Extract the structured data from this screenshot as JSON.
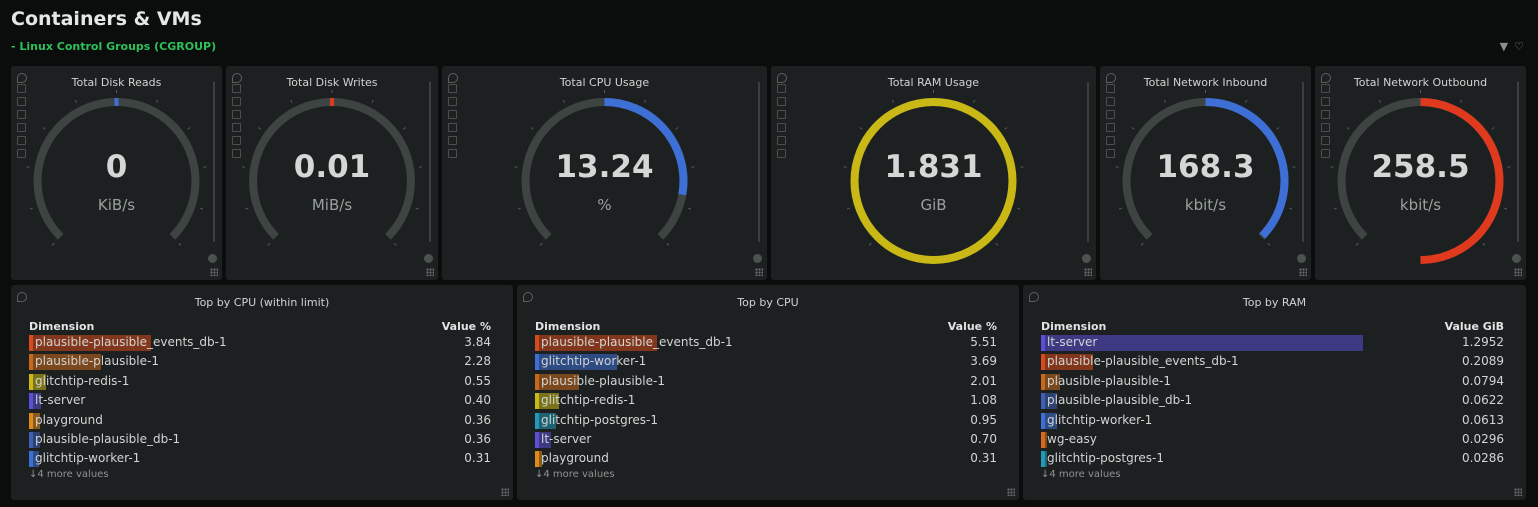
{
  "header": {
    "title": "Containers & VMs",
    "subtitle": "- Linux Control Groups (CGROUP)"
  },
  "gauges": [
    {
      "title": "Total Disk Reads",
      "value": "0",
      "unit": "KiB/s",
      "fraction": 0.0,
      "color": "#3d6fd6"
    },
    {
      "title": "Total Disk Writes",
      "value": "0.01",
      "unit": "MiB/s",
      "fraction": 0.0,
      "color": "#e03a1e"
    },
    {
      "title": "Total CPU Usage",
      "value": "13.24",
      "unit": "%",
      "fraction": 0.5,
      "color": "#3d6fd6"
    },
    {
      "title": "Total RAM Usage",
      "value": "1.831",
      "unit": "GiB",
      "fraction": 1.0,
      "color": "#c9b815"
    },
    {
      "title": "Total Network Inbound",
      "value": "168.3",
      "unit": "kbit/s",
      "fraction": 0.67,
      "color": "#3d6fd6"
    },
    {
      "title": "Total Network Outbound",
      "value": "258.5",
      "unit": "kbit/s",
      "fraction": 0.9,
      "color": "#e03a1e"
    }
  ],
  "tables": [
    {
      "title": "Top by CPU (within limit)",
      "dimension_label": "Dimension",
      "value_label": "Value %",
      "more": "↓4 more values",
      "rows": [
        {
          "name": "plausible-plausible_events_db-1",
          "value": "3.84",
          "fraction": 1.0,
          "color": "#d64a1c"
        },
        {
          "name": "plausible-plausible-1",
          "value": "2.28",
          "fraction": 0.59,
          "color": "#c8681a"
        },
        {
          "name": "glitchtip-redis-1",
          "value": "0.55",
          "fraction": 0.14,
          "color": "#c9b815"
        },
        {
          "name": "lt-server",
          "value": "0.40",
          "fraction": 0.1,
          "color": "#5a4fd6"
        },
        {
          "name": "playground",
          "value": "0.36",
          "fraction": 0.09,
          "color": "#e08a1a"
        },
        {
          "name": "plausible-plausible_db-1",
          "value": "0.36",
          "fraction": 0.09,
          "color": "#3d5fb6"
        },
        {
          "name": "glitchtip-worker-1",
          "value": "0.31",
          "fraction": 0.08,
          "color": "#3d6fd6"
        }
      ]
    },
    {
      "title": "Top by CPU",
      "dimension_label": "Dimension",
      "value_label": "Value %",
      "more": "↓4 more values",
      "rows": [
        {
          "name": "plausible-plausible_events_db-1",
          "value": "5.51",
          "fraction": 1.0,
          "color": "#d64a1c"
        },
        {
          "name": "glitchtip-worker-1",
          "value": "3.69",
          "fraction": 0.67,
          "color": "#3d6fd6"
        },
        {
          "name": "plausible-plausible-1",
          "value": "2.01",
          "fraction": 0.36,
          "color": "#c8681a"
        },
        {
          "name": "glitchtip-redis-1",
          "value": "1.08",
          "fraction": 0.2,
          "color": "#c9b815"
        },
        {
          "name": "glitchtip-postgres-1",
          "value": "0.95",
          "fraction": 0.17,
          "color": "#1f9ab8"
        },
        {
          "name": "lt-server",
          "value": "0.70",
          "fraction": 0.13,
          "color": "#5a4fd6"
        },
        {
          "name": "playground",
          "value": "0.31",
          "fraction": 0.06,
          "color": "#e08a1a"
        }
      ]
    },
    {
      "title": "Top by RAM",
      "dimension_label": "Dimension",
      "value_label": "Value GiB",
      "more": "↓4 more values",
      "rows": [
        {
          "name": "lt-server",
          "value": "1.2952",
          "fraction": 1.0,
          "color": "#5a4fd6"
        },
        {
          "name": "plausible-plausible_events_db-1",
          "value": "0.2089",
          "fraction": 0.16,
          "color": "#d64a1c"
        },
        {
          "name": "plausible-plausible-1",
          "value": "0.0794",
          "fraction": 0.06,
          "color": "#c8681a"
        },
        {
          "name": "plausible-plausible_db-1",
          "value": "0.0622",
          "fraction": 0.05,
          "color": "#3d5fb6"
        },
        {
          "name": "glitchtip-worker-1",
          "value": "0.0613",
          "fraction": 0.05,
          "color": "#3d6fd6"
        },
        {
          "name": "wg-easy",
          "value": "0.0296",
          "fraction": 0.02,
          "color": "#d66a1c"
        },
        {
          "name": "glitchtip-postgres-1",
          "value": "0.0286",
          "fraction": 0.02,
          "color": "#1f9ab8"
        }
      ]
    }
  ]
}
